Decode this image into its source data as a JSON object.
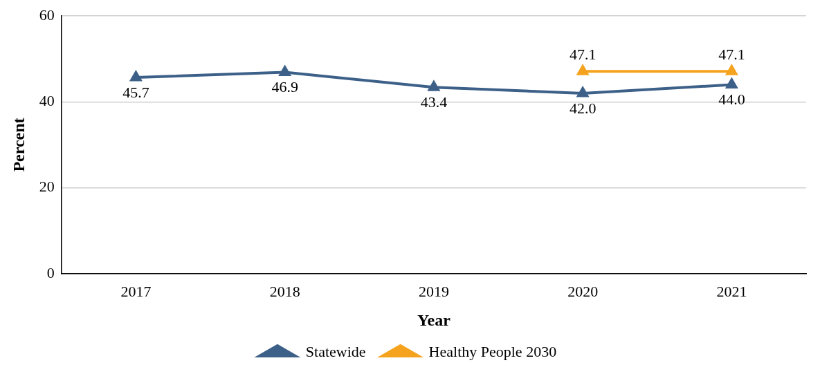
{
  "chart_data": {
    "type": "line",
    "xlabel": "Year",
    "ylabel": "Percent",
    "categories": [
      "2017",
      "2018",
      "2019",
      "2020",
      "2021"
    ],
    "series": [
      {
        "name": "Statewide",
        "color": "#3c6088",
        "values": [
          45.7,
          46.9,
          43.4,
          42.0,
          44.0
        ],
        "value_labels": [
          "45.7",
          "46.9",
          "43.4",
          "42.0",
          "44.0"
        ]
      },
      {
        "name": "Healthy People 2030",
        "color": "#f5a31e",
        "values": [
          null,
          null,
          null,
          47.1,
          47.1
        ],
        "value_labels": [
          null,
          null,
          null,
          "47.1",
          "47.1"
        ]
      }
    ],
    "ylim": [
      0,
      60
    ],
    "yticks": [
      0,
      20,
      40,
      60
    ],
    "grid": "y",
    "legend": "bottom",
    "marker": "triangle",
    "line_style": "solid"
  }
}
